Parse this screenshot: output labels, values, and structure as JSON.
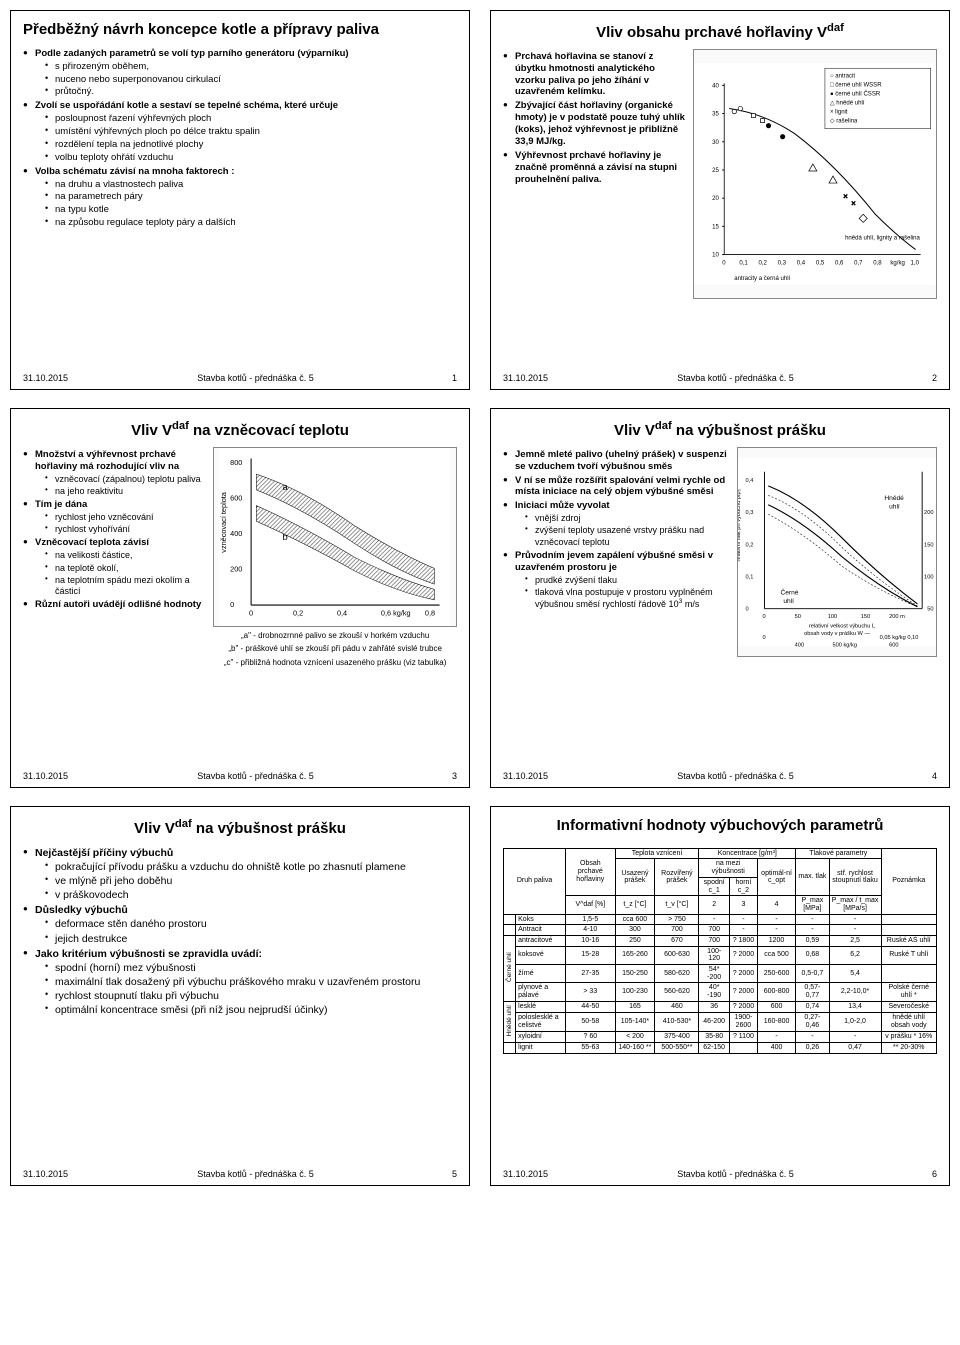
{
  "footer": {
    "date": "31.10.2015",
    "course": "Stavba kotlů - přednáška č. 5"
  },
  "slide1": {
    "title": "Předběžný návrh koncepce kotle a přípravy paliva",
    "b1": "Podle zadaných parametrů se volí typ parního generátoru (výparníku)",
    "b1a": "s přirozeným oběhem,",
    "b1b": "nuceno nebo superponovanou cirkulací",
    "b1c": "průtočný.",
    "b2": "Zvolí se uspořádání kotle a sestaví se tepelné schéma, které určuje",
    "b2a": "posloupnost řazení výhřevných ploch",
    "b2b": "umístění výhřevných ploch po délce traktu spalin",
    "b2c": "rozdělení tepla na jednotlivé plochy",
    "b2d": "volbu teploty ohřátí vzduchu",
    "b3": "Volba schématu závisí na mnoha faktorech :",
    "b3a": "na druhu a vlastnostech paliva",
    "b3b": "na parametrech páry",
    "b3c": "na typu kotle",
    "b3d": "na způsobu regulace teploty páry a dalších",
    "num": "1"
  },
  "slide2": {
    "title_prefix": "Vliv obsahu prchavé hořlaviny V",
    "title_sup": "daf",
    "p1": "Prchavá hořlavina se stanoví z úbytku hmotnosti analytického vzorku paliva po jeho žíhání v uzavřeném kelímku.",
    "p2": "Zbývající část hořlaviny (organické hmoty) je v podstatě pouze tuhý uhlík (koks), jehož výhřevnost je přibližně 33,9 MJ/kg.",
    "p3": "Výhřevnost prchavé hořlaviny je značně proměnná a závisí na stupni prouhelnění paliva.",
    "chart": {
      "type": "scatter-line",
      "xlim": [
        0.0,
        1.0
      ],
      "xtick_step": 0.1,
      "xlabel": "V^daf / kg/kg",
      "ylim": [
        10,
        40
      ],
      "ytick_step": 5,
      "ylabel": "MJ/kg",
      "grid_color": "#e0e0e0",
      "background_color": "#ffffff",
      "series": [
        {
          "name": "antracit",
          "marker": "○",
          "xy": [
            [
              0.05,
              35
            ],
            [
              0.08,
              36
            ]
          ]
        },
        {
          "name": "černé uhlí WSSR",
          "marker": "□",
          "xy": [
            [
              0.15,
              34
            ],
            [
              0.2,
              33
            ]
          ]
        },
        {
          "name": "černé uhlí ČSSR",
          "marker": "●",
          "xy": [
            [
              0.22,
              32
            ],
            [
              0.3,
              30
            ]
          ]
        },
        {
          "name": "hnědé uhlí",
          "marker": "△",
          "xy": [
            [
              0.45,
              27
            ],
            [
              0.55,
              25
            ]
          ]
        },
        {
          "name": "lignit",
          "marker": "×",
          "xy": [
            [
              0.6,
              23
            ],
            [
              0.65,
              22
            ]
          ]
        },
        {
          "name": "rašelina",
          "marker": "◇",
          "xy": [
            [
              0.7,
              20
            ]
          ]
        }
      ],
      "trend_color": "#000000"
    },
    "num": "2"
  },
  "slide3": {
    "title_prefix": "Vliv V",
    "title_sup": "daf",
    "title_suffix": " na vzněcovací teplotu",
    "l1": "Množství a výhřevnost prchavé hořlaviny má rozhodující vliv na",
    "l1a": "vzněcovací (zápalnou) teplotu paliva",
    "l1b": "na jeho reaktivitu",
    "l2": "Tím je dána",
    "l2a": "rychlost jeho vzněcování",
    "l2b": "rychlost vyhořívání",
    "l3": "Vzněcovací teplota závisí",
    "l3a": "na velikosti částice,",
    "l3b": "na teplotě okolí,",
    "l3c": "na teplotním spádu mezi okolím a částicí",
    "l4": "Různí autoři uvádějí odlišné hodnoty",
    "cap_a": "„a\" - drobnozrnné palivo se zkouší v horkém vzduchu",
    "cap_b": "„b\" - práškové uhlí se zkouší při pádu v zahřáté svislé trubce",
    "cap_c": "„c\" - přibližná hodnota vznícení usazeného prášku (viz tabulka)",
    "chart": {
      "type": "area-band",
      "xlim": [
        0,
        0.8
      ],
      "xticks": [
        0,
        0.2,
        0.4,
        0.6,
        0.8
      ],
      "xlabel": "kg/kg",
      "ylim": [
        0,
        800
      ],
      "yticks": [
        0,
        200,
        400,
        600,
        800
      ],
      "ylabel": "vzněcovací teplota °C",
      "bands": [
        {
          "label": "a",
          "fill": "hatch",
          "color": "#555555"
        },
        {
          "label": "b",
          "fill": "hatch",
          "color": "#888888"
        }
      ],
      "background_color": "#ffffff"
    },
    "num": "3"
  },
  "slide4": {
    "title_prefix": "Vliv V",
    "title_sup": "daf",
    "title_suffix": " na výbušnost prášku",
    "p1": "Jemně mleté palivo (uhelný prášek) v suspenzi se vzduchem tvoří výbušnou směs",
    "p2": "V ní se může rozšířit spalování velmi rychle od místa iniciace na celý objem výbušné směsi",
    "p3": "Iniciaci může vyvolat",
    "p3a": "vnější zdroj",
    "p3b": "zvýšení teploty usazené vrstvy prášku nad vzněcovací teplotu",
    "p4": "Průvodním jevem zapálení výbušné směsi v uzavřeném prostoru je",
    "p4a": "prudké zvýšení tlaku",
    "p4b_pre": "tlaková vlna postupuje v prostoru vyplněném výbušnou směsí rychlostí řádově 10",
    "p4b_sup": "3",
    "p4b_post": " m/s",
    "chart": {
      "type": "line",
      "xlim": [
        0,
        0.1
      ],
      "xticks": [
        0,
        0.05,
        0.1
      ],
      "xlabel": "obsah vody v prášku W  —",
      "ylim_left": [
        0,
        0.4
      ],
      "yticks_left": [
        0,
        0.1,
        0.2,
        0.3,
        0.4
      ],
      "ylabel_left": "relativní tlak při výbuchu p/p₀",
      "ylim_right": [
        50,
        200
      ],
      "yticks_right": [
        50,
        100,
        150,
        200
      ],
      "ylabel_right": "relativní velkost výbuchu L",
      "curves": [
        {
          "name": "Hnědé uhlí",
          "color": "#000000",
          "xy": [
            [
              0,
              0.38
            ],
            [
              0.05,
              0.25
            ],
            [
              0.1,
              0.1
            ]
          ]
        },
        {
          "name": "Černé uhlí",
          "color": "#000000",
          "xy": [
            [
              0,
              0.3
            ],
            [
              0.05,
              0.18
            ],
            [
              0.1,
              0.06
            ]
          ]
        }
      ],
      "x2_scale": {
        "min": 400,
        "max": 600,
        "label": "kg/kg"
      }
    },
    "num": "4"
  },
  "slide5": {
    "title_prefix": "Vliv V",
    "title_sup": "daf",
    "title_suffix": " na výbušnost prášku",
    "h1": "Nejčastější příčiny výbuchů",
    "h1a": "pokračující přívodu prášku a vzduchu do ohniště kotle po zhasnutí plamene",
    "h1b": "ve mlýně při jeho doběhu",
    "h1c": "v práškovodech",
    "h2": "Důsledky výbuchů",
    "h2a": "deformace stěn daného prostoru",
    "h2b": "jejich destrukce",
    "h3": "Jako kritérium výbušnosti se zpravidla uvádí:",
    "h3a": "spodní (horní) mez výbušnosti",
    "h3b": "maximální tlak dosažený při výbuchu práškového mraku v uzavřeném prostoru",
    "h3c": "rychlost stoupnutí tlaku při výbuchu",
    "h3d": "optimální koncentrace směsi (při níž jsou nejprudší účinky)",
    "num": "5"
  },
  "slide6": {
    "title": "Informativní hodnoty výbuchových parametrů",
    "headers": {
      "c1": "Druh paliva",
      "c2a": "Obsah prchavé hořlaviny",
      "c2b": "V^daf [%]",
      "g_temp": "Teplota vznícení",
      "c3a": "Usazený prášek",
      "c3b": "t_z [°C]",
      "c4a": "Rozvířený prášek",
      "c4b": "t_v [°C]",
      "g_konc": "Koncentrace [g/m³]",
      "g_mez": "na mezi výbušnosti",
      "c5": "spodní c_1",
      "c6": "horní c_2",
      "c7": "optimál-ní c_opt",
      "g_tlak": "Tlakové parametry",
      "c8a": "max. tlak",
      "c8b": "P_max [MPa]",
      "c9a": "stř. rychlost stoupnutí tlaku",
      "c9b": "P_max / t_max [MPa/s]",
      "c10": "Poznámka"
    },
    "groups": {
      "g2": "Černé uhlí",
      "g3": "Hnědé uhlí"
    },
    "rows": [
      [
        "",
        "Koks",
        "1,5-5",
        "cca 600",
        "> 750",
        "-",
        "-",
        "-",
        "-",
        "-",
        ""
      ],
      [
        "",
        "Antracit",
        "4-10",
        "300",
        "700",
        "700",
        "-",
        "-",
        "-",
        "-",
        ""
      ],
      [
        "Černé uhlí",
        "antracitové",
        "10-16",
        "250",
        "670",
        "700",
        "? 1800",
        "1200",
        "0,59",
        "2,5",
        "Ruské AŠ uhlí"
      ],
      [
        "Černé uhlí",
        "koksové",
        "15-28",
        "165-260",
        "600-630",
        "100-120",
        "? 2000",
        "cca 500",
        "0,68",
        "6,2",
        "Ruské T uhlí"
      ],
      [
        "Černé uhlí",
        "žírné",
        "27-35",
        "150-250",
        "580-620",
        "54* -200",
        "? 2000",
        "250-600",
        "0,5-0,7",
        "5,4",
        ""
      ],
      [
        "Černé uhlí",
        "plynové a pálavé",
        "> 33",
        "100-230",
        "560-620",
        "40* -190",
        "? 2000",
        "600-800",
        "0,57-0,77",
        "2,2-10,0*",
        "Polské černé uhlí *"
      ],
      [
        "Hnědé uhlí",
        "lesklé",
        "44-50",
        "165",
        "460",
        "36",
        "? 2000",
        "600",
        "0,74",
        "13,4",
        "Severočeské"
      ],
      [
        "Hnědé uhlí",
        "poloslesklé a celistvé",
        "50-58",
        "105-140*",
        "410-530*",
        "46-200",
        "1900-2600",
        "160-800",
        "0,27-0,46",
        "1,0-2,0",
        "hnědé uhlí obsah vody"
      ],
      [
        "Hnědé uhlí",
        "xyloidní",
        "? 60",
        "< 200",
        "375-400",
        "35-80",
        "? 1100",
        "-",
        "-",
        "-",
        "v prášku * 16%"
      ],
      [
        "",
        "lignit",
        "55-63",
        "140-160 **",
        "500-550**",
        "62-150",
        "",
        "400",
        "0,26",
        "0,47",
        "** 20-30%"
      ]
    ],
    "col_numbers": [
      "",
      "",
      "1",
      "2",
      "3",
      "4",
      "5",
      "6",
      "",
      ""
    ],
    "num": "6"
  }
}
